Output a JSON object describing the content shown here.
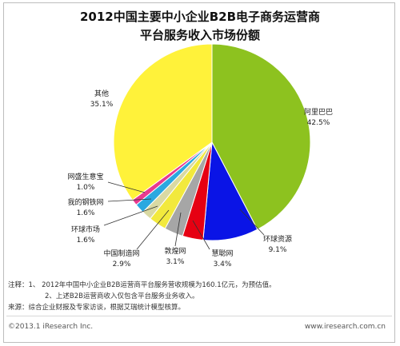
{
  "title_line1": "2012中国主要中小企业B2B电子商务运营商",
  "title_line2": "平台服务收入市场份额",
  "chart_data": {
    "type": "pie",
    "title": "2012中国主要中小企业B2B电子商务运营商平台服务收入市场份额",
    "slices": [
      {
        "label": "阿里巴巴",
        "value": 42.5,
        "display": "42.5%",
        "color": "#8dc21f"
      },
      {
        "label": "环球资源",
        "value": 9.1,
        "display": "9.1%",
        "color": "#0a14e6"
      },
      {
        "label": "慧聪网",
        "value": 3.4,
        "display": "3.4%",
        "color": "#e60012"
      },
      {
        "label": "敦煌网",
        "value": 3.1,
        "display": "3.1%",
        "color": "#a6a6a6"
      },
      {
        "label": "中国制造网",
        "value": 2.9,
        "display": "2.9%",
        "color": "#f2e93d"
      },
      {
        "label": "环球市场",
        "value": 1.6,
        "display": "1.6%",
        "color": "#d9d9a3"
      },
      {
        "label": "我的钢铁网",
        "value": 1.6,
        "display": "1.6%",
        "color": "#2aa8e0"
      },
      {
        "label": "网盛生意宝",
        "value": 1.0,
        "display": "1.0%",
        "color": "#e83a8f"
      },
      {
        "label": "其他",
        "value": 35.1,
        "display": "35.1%",
        "color": "#fff23a"
      }
    ]
  },
  "notes": {
    "line1": "注释：1、 2012年中国中小企业B2B运营商平台服务营收规模为160.1亿元，为预估值。",
    "line2": "2、上述B2B运营商收入仅包含平台服务业务收入。",
    "line3": "来源：综合企业财报及专家访谈，根据艾瑞统计模型核算。"
  },
  "footer": {
    "copyright": "©2013.1 iResearch Inc.",
    "website": "www.iresearch.com.cn"
  }
}
